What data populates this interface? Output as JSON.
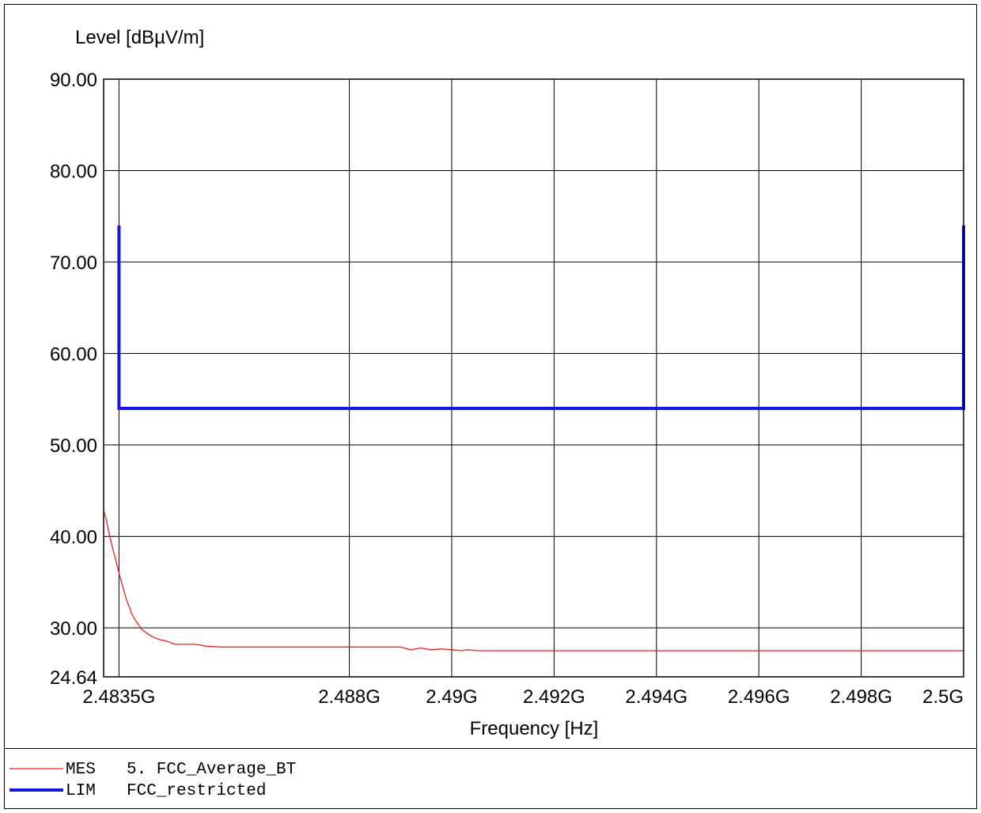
{
  "chart_data": {
    "type": "line",
    "ylabel": "Level [dBµV/m]",
    "xlabel": "Frequency [Hz]",
    "x_unit": "Hz",
    "xlim": [
      2483200000,
      2500000000
    ],
    "ylim": [
      24.64,
      90.0
    ],
    "x_ticks": [
      2483500000,
      2488000000,
      2490000000,
      2492000000,
      2494000000,
      2496000000,
      2498000000,
      2500000000
    ],
    "x_tick_labels": [
      "2.4835G",
      "2.488G",
      "2.49G",
      "2.492G",
      "2.494G",
      "2.496G",
      "2.498G",
      "2.5G"
    ],
    "y_ticks": [
      24.64,
      30,
      40,
      50,
      60,
      70,
      80,
      90
    ],
    "y_tick_labels": [
      "24.64",
      "30.00",
      "40.00",
      "50.00",
      "60.00",
      "70.00",
      "80.00",
      "90.00"
    ],
    "grid": true,
    "series": [
      {
        "key": "MES",
        "name": "5. FCC_Average_BT",
        "color": "#e8221b",
        "x": [
          2483200000,
          2483250000,
          2483300000,
          2483350000,
          2483400000,
          2483450000,
          2483500000,
          2483550000,
          2483600000,
          2483650000,
          2483700000,
          2483750000,
          2483800000,
          2483850000,
          2483900000,
          2483950000,
          2484000000,
          2484100000,
          2484200000,
          2484300000,
          2484400000,
          2484500000,
          2484600000,
          2484800000,
          2485000000,
          2485200000,
          2485500000,
          2486000000,
          2487000000,
          2488000000,
          2489000000,
          2489200000,
          2489400000,
          2489600000,
          2489800000,
          2490000000,
          2490200000,
          2490300000,
          2490500000,
          2492000000,
          2494000000,
          2496000000,
          2498000000,
          2500000000
        ],
        "y": [
          42.8,
          41.9,
          40.5,
          39.3,
          38.2,
          37.1,
          36.0,
          35.0,
          34.0,
          33.0,
          32.3,
          31.5,
          31.0,
          30.6,
          30.2,
          29.8,
          29.6,
          29.2,
          28.9,
          28.7,
          28.6,
          28.4,
          28.2,
          28.2,
          28.2,
          28.0,
          27.9,
          27.9,
          27.9,
          27.9,
          27.9,
          27.6,
          27.8,
          27.6,
          27.7,
          27.6,
          27.5,
          27.6,
          27.5,
          27.5,
          27.5,
          27.5,
          27.5,
          27.5
        ]
      },
      {
        "key": "LIM",
        "name": "FCC_restricted",
        "color": "#1414e6",
        "x": [
          2483500000,
          2483500000,
          2500000000,
          2500000000
        ],
        "y": [
          74.0,
          54.0,
          54.0,
          74.0
        ]
      }
    ]
  }
}
